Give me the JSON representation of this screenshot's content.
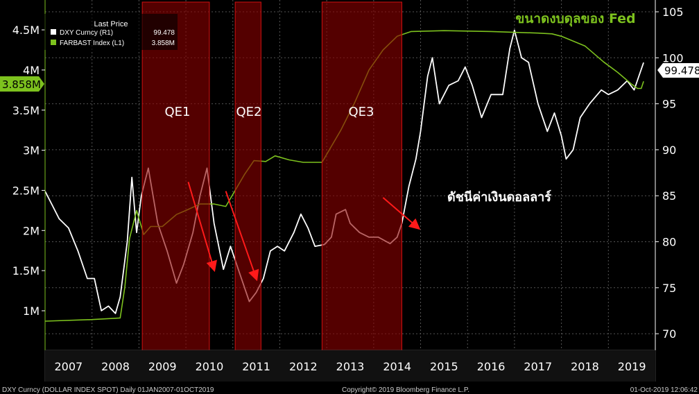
{
  "chart_data": {
    "type": "line",
    "xlim": [
      2007,
      2020
    ],
    "x_tick_labels": [
      "2007",
      "2008",
      "2009",
      "2010",
      "2011",
      "2012",
      "2013",
      "2014",
      "2015",
      "2016",
      "2017",
      "2018",
      "2019"
    ],
    "left_axis": {
      "ylim": [
        0.75,
        4.85
      ],
      "ticks": [
        1,
        1.5,
        2,
        2.5,
        3,
        3.5,
        4,
        4.5
      ],
      "tick_labels": [
        "1M",
        "1.5M",
        "2M",
        "2.5M",
        "3M",
        "3.5M",
        "4M",
        "4.5M"
      ]
    },
    "right_axis": {
      "ylim": [
        68,
        106.3
      ],
      "ticks": [
        70,
        75,
        80,
        85,
        90,
        95,
        100,
        105
      ],
      "tick_labels": [
        "70",
        "75",
        "80",
        "85",
        "90",
        "95",
        "100",
        "105"
      ]
    },
    "grid": true,
    "legend": {
      "placement": "top-left",
      "title": "Last Price",
      "entries": [
        {
          "label": "DXY Curncy  (R1)",
          "value": "99.478",
          "color": "#ffffff"
        },
        {
          "label": "FARBAST Index  (L1)",
          "value": "3.858M",
          "color": "#7dc21e"
        }
      ]
    },
    "series": [
      {
        "name": "DXY Curncy",
        "axis": "right",
        "color": "#ffffff",
        "x": [
          2007.0,
          2007.15,
          2007.3,
          2007.5,
          2007.7,
          2007.9,
          2008.05,
          2008.2,
          2008.35,
          2008.5,
          2008.6,
          2008.75,
          2008.85,
          2008.95,
          2009.05,
          2009.2,
          2009.4,
          2009.6,
          2009.8,
          2009.95,
          2010.15,
          2010.3,
          2010.45,
          2010.6,
          2010.8,
          2010.95,
          2011.15,
          2011.35,
          2011.5,
          2011.65,
          2011.8,
          2011.95,
          2012.1,
          2012.3,
          2012.45,
          2012.6,
          2012.75,
          2012.95,
          2013.1,
          2013.2,
          2013.4,
          2013.5,
          2013.7,
          2013.9,
          2014.1,
          2014.35,
          2014.5,
          2014.6,
          2014.75,
          2014.9,
          2015.0,
          2015.15,
          2015.25,
          2015.4,
          2015.6,
          2015.8,
          2015.95,
          2016.1,
          2016.3,
          2016.5,
          2016.75,
          2016.9,
          2017.0,
          2017.15,
          2017.3,
          2017.5,
          2017.7,
          2017.85,
          2018.0,
          2018.1,
          2018.25,
          2018.4,
          2018.6,
          2018.85,
          2019.0,
          2019.2,
          2019.4,
          2019.55,
          2019.65,
          2019.75
        ],
        "y": [
          85.5,
          84,
          82.5,
          81.5,
          79,
          76,
          76,
          72.5,
          73,
          72.2,
          74,
          80,
          87,
          81,
          85,
          88,
          82,
          79,
          75.5,
          77.5,
          81,
          85,
          88,
          82,
          77,
          79.5,
          76.5,
          73.5,
          74.5,
          76,
          79,
          79.5,
          79,
          81,
          83,
          81.5,
          79.5,
          79.7,
          80.5,
          83,
          83.5,
          82,
          81,
          80.5,
          80.5,
          79.8,
          80.5,
          82,
          86,
          89,
          92,
          98,
          100,
          95,
          97,
          97.5,
          99,
          97,
          93.5,
          96,
          96,
          101,
          103,
          100,
          99.5,
          95,
          92,
          94,
          91.5,
          89,
          90,
          93.5,
          95,
          96.5,
          96,
          96.5,
          97.5,
          96.5,
          98,
          99.478
        ]
      },
      {
        "name": "FARBAST Index",
        "axis": "left",
        "color": "#7dc21e",
        "x": [
          2007.0,
          2008.0,
          2008.6,
          2008.7,
          2008.8,
          2008.95,
          2009.1,
          2009.25,
          2009.5,
          2009.8,
          2010.0,
          2010.3,
          2010.6,
          2010.85,
          2011.0,
          2011.25,
          2011.45,
          2011.7,
          2011.9,
          2012.2,
          2012.5,
          2012.9,
          2013.0,
          2013.3,
          2013.6,
          2013.9,
          2014.2,
          2014.5,
          2014.8,
          2015.5,
          2016.5,
          2017.5,
          2017.8,
          2018.0,
          2018.5,
          2018.9,
          2019.2,
          2019.5,
          2019.62,
          2019.7,
          2019.75
        ],
        "y": [
          0.87,
          0.89,
          0.91,
          1.3,
          1.9,
          2.25,
          1.95,
          2.05,
          2.05,
          2.2,
          2.25,
          2.33,
          2.33,
          2.3,
          2.45,
          2.7,
          2.87,
          2.86,
          2.93,
          2.88,
          2.85,
          2.85,
          2.95,
          3.25,
          3.6,
          4.0,
          4.25,
          4.42,
          4.48,
          4.49,
          4.48,
          4.46,
          4.45,
          4.42,
          4.3,
          4.1,
          3.97,
          3.82,
          3.77,
          3.77,
          3.858
        ]
      }
    ],
    "shaded_regions": [
      {
        "label": "QE1",
        "from": 2009.07,
        "to": 2010.5
      },
      {
        "label": "QE2",
        "from": 2011.05,
        "to": 2011.6
      },
      {
        "label": "QE3",
        "from": 2012.9,
        "to": 2014.6
      }
    ],
    "arrows": [
      {
        "from": [
          2010.05,
          86.5
        ],
        "to": [
          2010.6,
          77
        ]
      },
      {
        "from": [
          2010.85,
          85.5
        ],
        "to": [
          2011.5,
          76
        ]
      },
      {
        "from": [
          2014.2,
          84.8
        ],
        "to": [
          2014.95,
          81.5
        ]
      }
    ],
    "annotations": {
      "fed_label": "ขนาดงบดุลของ Fed",
      "dxy_label": "ดัชนีค่าเงินดอลลาร์"
    },
    "last_value_tags": {
      "right": "99.478",
      "left": "3.858M"
    }
  },
  "footer": {
    "left": "DXY Curncy (DOLLAR INDEX SPOT)  Daily 01JAN2007-01OCT2019",
    "center": "Copyright© 2019 Bloomberg Finance L.P.",
    "right": "01-Oct-2019 12:06:42"
  }
}
